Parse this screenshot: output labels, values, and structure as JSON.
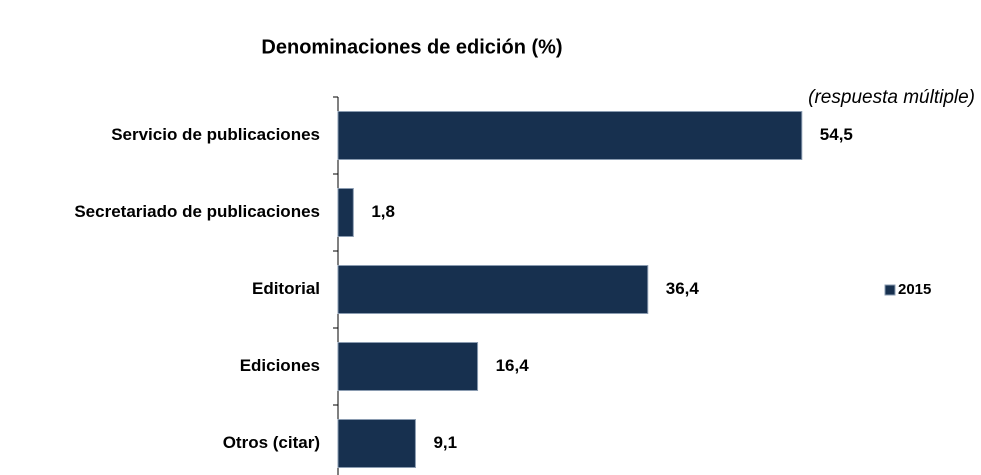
{
  "chart_data": {
    "type": "bar",
    "orientation": "horizontal",
    "title": "Denominaciones de edición (%)",
    "subtitle": "(respuesta múltiple)",
    "categories": [
      "Servicio de publicaciones",
      "Secretariado de publicaciones",
      "Editorial",
      "Ediciones",
      "Otros (citar)"
    ],
    "series": [
      {
        "name": "2015",
        "color": "#17304f",
        "values": [
          54.5,
          1.8,
          36.4,
          16.4,
          9.1
        ],
        "value_labels": [
          "54,5",
          "1,8",
          "36,4",
          "16,4",
          "9,1"
        ]
      }
    ],
    "legend": "right"
  }
}
